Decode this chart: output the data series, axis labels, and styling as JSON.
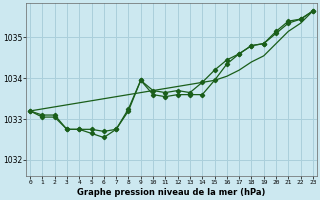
{
  "title": "Graphe pression niveau de la mer (hPa)",
  "background_color": "#cce8f0",
  "grid_color": "#aacfdb",
  "line_color": "#1a5e1a",
  "x_ticks": [
    0,
    1,
    2,
    3,
    4,
    5,
    6,
    7,
    8,
    9,
    10,
    11,
    12,
    13,
    14,
    15,
    16,
    17,
    18,
    19,
    20,
    21,
    22,
    23
  ],
  "ylim": [
    1031.6,
    1035.85
  ],
  "yticks": [
    1032,
    1033,
    1034,
    1035
  ],
  "series1": [
    1033.2,
    1033.1,
    1033.1,
    1032.75,
    1032.75,
    1032.75,
    1032.7,
    1032.75,
    1033.25,
    1033.95,
    1033.7,
    1033.65,
    1033.7,
    1033.65,
    1033.9,
    1034.2,
    1034.45,
    1034.6,
    1034.8,
    1034.85,
    1035.15,
    1035.4,
    1035.45,
    1035.65
  ],
  "series2": [
    1033.2,
    1033.05,
    1033.05,
    1032.75,
    1032.75,
    1032.65,
    1032.55,
    1032.75,
    1033.2,
    1033.95,
    1033.6,
    1033.55,
    1033.6,
    1033.6,
    1033.6,
    1033.95,
    1034.35,
    1034.6,
    1034.8,
    1034.85,
    1035.1,
    1035.35,
    1035.45,
    1035.65
  ],
  "series3_linear": [
    1033.2,
    1033.25,
    1033.3,
    1033.35,
    1033.4,
    1033.45,
    1033.5,
    1033.55,
    1033.6,
    1033.65,
    1033.7,
    1033.75,
    1033.8,
    1033.85,
    1033.9,
    1033.95,
    1034.05,
    1034.2,
    1034.4,
    1034.55,
    1034.85,
    1035.15,
    1035.35,
    1035.65
  ]
}
